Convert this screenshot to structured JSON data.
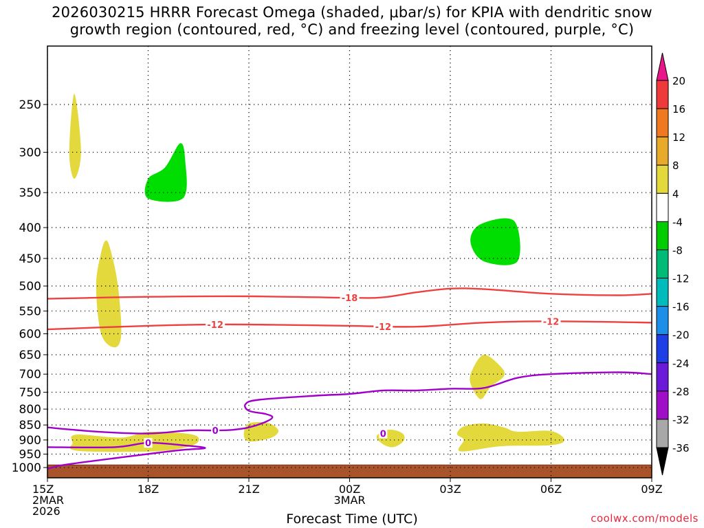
{
  "title": {
    "line1": "2026030215 HRRR Forecast Omega (shaded, μbar/s) for KPIA with dendritic snow",
    "line2": "growth region (contoured, red, °C) and freezing level (contoured, purple, °C)"
  },
  "xlabel": "Forecast Time (UTC)",
  "credit": "coolwx.com/models",
  "chart_data": {
    "type": "time-height cross section",
    "x_ticks": [
      {
        "hour": 0,
        "lines": [
          "15Z",
          "2MAR",
          "2026"
        ]
      },
      {
        "hour": 3,
        "lines": [
          "18Z"
        ]
      },
      {
        "hour": 6,
        "lines": [
          "21Z"
        ]
      },
      {
        "hour": 9,
        "lines": [
          "00Z",
          "3MAR"
        ]
      },
      {
        "hour": 12,
        "lines": [
          "03Z"
        ]
      },
      {
        "hour": 15,
        "lines": [
          "06Z"
        ]
      },
      {
        "hour": 18,
        "lines": [
          "09Z"
        ]
      }
    ],
    "xlim_hours": [
      0,
      18
    ],
    "y_ticks_hpa": [
      250,
      300,
      350,
      400,
      450,
      500,
      550,
      600,
      650,
      700,
      750,
      800,
      850,
      900,
      950,
      1000
    ],
    "ylim_hpa": [
      200,
      1040
    ],
    "colorbar": {
      "labels": [
        "20",
        "16",
        "12",
        "8",
        "4",
        "-4",
        "-8",
        "-12",
        "-16",
        "-20",
        "-24",
        "-28",
        "-32",
        "-36"
      ],
      "bands": [
        {
          "color": "#ee3a3a"
        },
        {
          "color": "#f07820"
        },
        {
          "color": "#e8aa2a"
        },
        {
          "color": "#e3d83c"
        },
        {
          "color": "#ffffff"
        },
        {
          "color": "#00cc00"
        },
        {
          "color": "#00bb77"
        },
        {
          "color": "#00bbbb"
        },
        {
          "color": "#1e8fe8"
        },
        {
          "color": "#1e3ee6"
        },
        {
          "color": "#6a1ad8"
        },
        {
          "color": "#a00fc8"
        },
        {
          "color": "#a8a8a8"
        }
      ],
      "top_arrow_color": "#e8168a",
      "bottom_arrow_color": "#000000"
    },
    "omega_regions": [
      {
        "sign": "positive",
        "color": "#e3d83c",
        "points": [
          [
            0.8,
            240
          ],
          [
            1.0,
            300
          ],
          [
            0.8,
            332
          ],
          [
            0.65,
            300
          ]
        ]
      },
      {
        "sign": "negative",
        "color": "#00dd00",
        "points": [
          [
            3.0,
            358
          ],
          [
            3.0,
            332
          ],
          [
            3.5,
            318
          ],
          [
            3.95,
            290
          ],
          [
            4.1,
            308
          ],
          [
            4.05,
            357
          ]
        ]
      },
      {
        "sign": "positive",
        "color": "#e3d83c",
        "points": [
          [
            1.75,
            420
          ],
          [
            1.9,
            440
          ],
          [
            2.1,
            500
          ],
          [
            2.2,
            600
          ],
          [
            2.0,
            632
          ],
          [
            1.6,
            600
          ],
          [
            1.45,
            500
          ],
          [
            1.6,
            440
          ]
        ]
      },
      {
        "sign": "positive",
        "color": "#e3d83c",
        "points": [
          [
            0.85,
            882
          ],
          [
            2.2,
            892
          ],
          [
            3.0,
            873
          ],
          [
            4.1,
            878
          ],
          [
            4.5,
            892
          ],
          [
            4.3,
            920
          ],
          [
            3.2,
            940
          ],
          [
            0.9,
            938
          ],
          [
            0.75,
            910
          ]
        ]
      },
      {
        "sign": "positive",
        "color": "#e3d83c",
        "points": [
          [
            6.0,
            845
          ],
          [
            6.55,
            843
          ],
          [
            6.85,
            862
          ],
          [
            6.85,
            878
          ],
          [
            6.6,
            895
          ],
          [
            6.0,
            905
          ],
          [
            5.85,
            880
          ]
        ]
      },
      {
        "sign": "positive",
        "color": "#e3d83c",
        "points": [
          [
            10.0,
            870
          ],
          [
            10.3,
            866
          ],
          [
            10.6,
            880
          ],
          [
            10.6,
            905
          ],
          [
            10.3,
            925
          ],
          [
            10.0,
            915
          ],
          [
            9.8,
            890
          ]
        ]
      },
      {
        "sign": "positive",
        "color": "#e3d83c",
        "points": [
          [
            13.0,
            650
          ],
          [
            13.5,
            680
          ],
          [
            13.6,
            705
          ],
          [
            13.2,
            735
          ],
          [
            12.9,
            770
          ],
          [
            12.6,
            725
          ],
          [
            12.65,
            690
          ]
        ]
      },
      {
        "sign": "positive",
        "color": "#e3d83c",
        "points": [
          [
            12.4,
            855
          ],
          [
            13.0,
            845
          ],
          [
            13.6,
            858
          ],
          [
            14.0,
            872
          ],
          [
            15.0,
            870
          ],
          [
            15.4,
            900
          ],
          [
            15.0,
            918
          ],
          [
            13.5,
            922
          ],
          [
            12.3,
            940
          ],
          [
            12.4,
            900
          ],
          [
            12.2,
            880
          ]
        ]
      },
      {
        "sign": "negative",
        "color": "#00dd00",
        "points": [
          [
            12.9,
            395
          ],
          [
            13.9,
            390
          ],
          [
            14.0,
            455
          ],
          [
            13.0,
            455
          ],
          [
            12.6,
            422
          ]
        ]
      }
    ],
    "contours": [
      {
        "value": -18,
        "label": "-18",
        "label_hour": 9.0,
        "color": "#ee4040",
        "points": [
          [
            0,
            525
          ],
          [
            3,
            521
          ],
          [
            6,
            520
          ],
          [
            9,
            523
          ],
          [
            10,
            522
          ],
          [
            11,
            512
          ],
          [
            12,
            505
          ],
          [
            13,
            506
          ],
          [
            15,
            515
          ],
          [
            17,
            518
          ],
          [
            18,
            515
          ]
        ]
      },
      {
        "value": -12,
        "label": "-12",
        "label_hour": 5.0,
        "color": "#ee4040",
        "points": [
          [
            0,
            590
          ],
          [
            3,
            582
          ],
          [
            5,
            579
          ],
          [
            7,
            580
          ],
          [
            9,
            582
          ],
          [
            11,
            584
          ],
          [
            13,
            575
          ],
          [
            15,
            572
          ],
          [
            18,
            575
          ]
        ]
      },
      {
        "value": -12,
        "label": "-12",
        "label_hour": 10.0,
        "color": "#ee4040",
        "label_only": true,
        "points": [
          [
            10,
            584
          ]
        ]
      },
      {
        "value": -12,
        "label": "-12",
        "label_hour": 15.0,
        "color": "#ee4040",
        "label_only": true,
        "points": [
          [
            15,
            572
          ]
        ]
      },
      {
        "value": 0,
        "label": "0",
        "label_hour": 5.0,
        "color": "#a000cc",
        "points": [
          [
            0,
            858
          ],
          [
            1.5,
            872
          ],
          [
            3.0,
            878
          ],
          [
            4.2,
            868
          ],
          [
            5.0,
            868
          ],
          [
            5.5,
            866
          ],
          [
            6.0,
            858
          ],
          [
            6.5,
            840
          ],
          [
            6.7,
            825
          ],
          [
            6.5,
            815
          ],
          [
            6.0,
            805
          ],
          [
            5.9,
            785
          ],
          [
            6.3,
            772
          ],
          [
            8.0,
            760
          ],
          [
            9.0,
            755
          ],
          [
            10.0,
            745
          ],
          [
            11.0,
            745
          ],
          [
            12.0,
            740
          ],
          [
            13.0,
            738
          ],
          [
            14.0,
            710
          ],
          [
            15.0,
            700
          ],
          [
            17.0,
            695
          ],
          [
            18.0,
            700
          ]
        ]
      },
      {
        "value": 0,
        "label": "0",
        "label_hour": 3.0,
        "color": "#a000cc",
        "points": [
          [
            0,
            925
          ],
          [
            2.0,
            925
          ],
          [
            3.0,
            910
          ],
          [
            4.0,
            918
          ],
          [
            4.7,
            928
          ],
          [
            4.0,
            935
          ],
          [
            3.3,
            945
          ],
          [
            2.0,
            965
          ],
          [
            0.5,
            990
          ],
          [
            0.0,
            1005
          ]
        ]
      },
      {
        "value": 0,
        "label": "0",
        "label_hour": 10.0,
        "color": "#a000cc",
        "label_only": true,
        "points": [
          [
            10.0,
            878
          ]
        ]
      }
    ],
    "terrain_hpa_surface": 990,
    "terrain_color": "#a9532a"
  }
}
